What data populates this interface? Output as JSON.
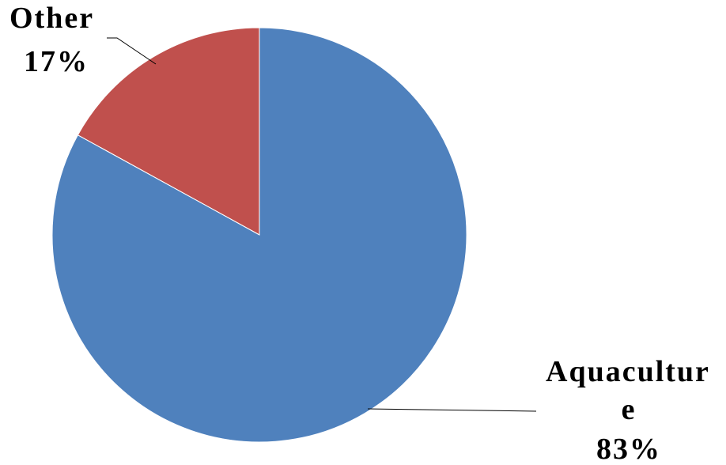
{
  "chart_data": {
    "type": "pie",
    "title": "",
    "slices": [
      {
        "label": "Other",
        "value": 17,
        "percent_label": "17%",
        "color": "#C0504D"
      },
      {
        "label": "Aquaculture",
        "value": 83,
        "percent_label": "83%",
        "color": "#4F81BD"
      }
    ],
    "label_lines": {
      "other": [
        "Other",
        "17%"
      ],
      "aquaculture": [
        "Aquacultur",
        "e",
        "83%"
      ]
    },
    "start_angle_deg": 0,
    "direction": "counterclockwise",
    "legend": "none",
    "data_labels": "outside-with-leader-lines"
  }
}
